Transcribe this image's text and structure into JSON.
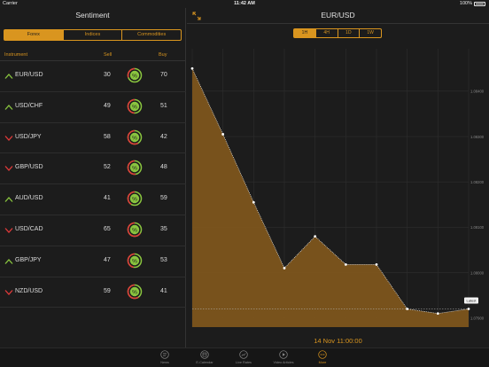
{
  "status": {
    "carrier": "Carrier",
    "time": "11:42 AM",
    "battery": "100%"
  },
  "sentiment": {
    "title": "Sentiment",
    "tabs": [
      {
        "label": "Forex",
        "active": true
      },
      {
        "label": "Indices",
        "active": false
      },
      {
        "label": "Commodities",
        "active": false
      }
    ],
    "columns": {
      "instrument": "Instrument",
      "sell": "Sell",
      "buy": "Buy"
    },
    "rows": [
      {
        "name": "EUR/USD",
        "sell": "30",
        "buy": "70",
        "trend": "up"
      },
      {
        "name": "USD/CHF",
        "sell": "49",
        "buy": "51",
        "trend": "up"
      },
      {
        "name": "USD/JPY",
        "sell": "58",
        "buy": "42",
        "trend": "down"
      },
      {
        "name": "GBP/USD",
        "sell": "52",
        "buy": "48",
        "trend": "down"
      },
      {
        "name": "AUD/USD",
        "sell": "41",
        "buy": "59",
        "trend": "up"
      },
      {
        "name": "USD/CAD",
        "sell": "65",
        "buy": "35",
        "trend": "down"
      },
      {
        "name": "GBP/JPY",
        "sell": "47",
        "buy": "53",
        "trend": "up"
      },
      {
        "name": "NZD/USD",
        "sell": "59",
        "buy": "41",
        "trend": "down"
      }
    ],
    "gauge_symbol": "%"
  },
  "chart": {
    "title": "EUR/USD",
    "timeframes": [
      {
        "label": "1H",
        "active": true
      },
      {
        "label": "4H",
        "active": false
      },
      {
        "label": "1D",
        "active": false
      },
      {
        "label": "1W",
        "active": false
      }
    ],
    "latest_label": "Latest",
    "datetime": "14 Nov 11:00:00"
  },
  "chart_data": {
    "type": "area",
    "title": "EUR/USD",
    "x": [
      0,
      1,
      2,
      3,
      4,
      5,
      6,
      7,
      8,
      9
    ],
    "values": [
      1.0845,
      1.08305,
      1.08155,
      1.0801,
      1.0808,
      1.08018,
      1.08018,
      1.0792,
      1.0791,
      1.0792
    ],
    "yticks": [
      "1.08400",
      "1.08300",
      "1.08200",
      "1.08100",
      "1.08000",
      "1.07900"
    ],
    "ylim": [
      1.0788,
      1.0847
    ],
    "latest": 1.0792,
    "grid": true,
    "colors": {
      "fill": "#7d551c",
      "line": "#e8e8e8",
      "accent": "#d9951f"
    }
  },
  "tabbar": {
    "items": [
      {
        "label": "News",
        "icon": "news-icon",
        "active": false
      },
      {
        "label": "E-Calendar",
        "icon": "calendar-icon",
        "active": false
      },
      {
        "label": "Live Rates",
        "icon": "rates-icon",
        "active": false
      },
      {
        "label": "Video Articles",
        "icon": "video-icon",
        "active": false
      },
      {
        "label": "More",
        "icon": "more-icon",
        "active": true
      }
    ]
  },
  "colors": {
    "accent": "#d9951f",
    "up": "#8ac63f",
    "down": "#e03a3a",
    "background": "#1c1c1c"
  }
}
